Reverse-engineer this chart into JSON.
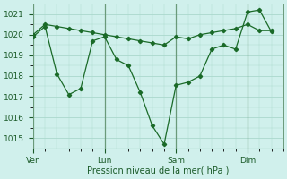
{
  "background_color": "#d0f0ec",
  "grid_color": "#aad8cc",
  "line_color": "#1a6a28",
  "marker_color": "#1a6a28",
  "xlabel": "Pression niveau de la mer( hPa )",
  "ylim": [
    1014.5,
    1021.5
  ],
  "yticks": [
    1015,
    1016,
    1017,
    1018,
    1019,
    1020,
    1021
  ],
  "xtick_labels": [
    "Ven",
    "Lun",
    "Sam",
    "Dim"
  ],
  "xtick_positions": [
    0,
    3,
    6,
    9
  ],
  "vline_positions": [
    0,
    3,
    6,
    9
  ],
  "series1_x": [
    0,
    0.5,
    1.0,
    1.5,
    2.0,
    2.5,
    3.0,
    3.5,
    4.0,
    4.5,
    5.0,
    5.5,
    6.0,
    6.5,
    7.0,
    7.5,
    8.0,
    8.5,
    9.0,
    9.5,
    10.0
  ],
  "series1_y": [
    1020.0,
    1020.5,
    1020.4,
    1020.3,
    1020.2,
    1020.1,
    1020.0,
    1019.9,
    1019.8,
    1019.7,
    1019.6,
    1019.5,
    1019.9,
    1019.8,
    1020.0,
    1020.1,
    1020.2,
    1020.3,
    1020.5,
    1020.2,
    1020.2
  ],
  "series2_x": [
    0,
    0.5,
    1.0,
    1.5,
    2.0,
    2.5,
    3.0,
    3.5,
    4.0,
    4.5,
    5.0,
    5.5,
    6.0,
    6.5,
    7.0,
    7.5,
    8.0,
    8.5,
    9.0,
    9.5,
    10.0
  ],
  "series2_y": [
    1019.9,
    1020.4,
    1018.1,
    1017.1,
    1017.4,
    1019.7,
    1019.9,
    1018.8,
    1018.5,
    1017.2,
    1015.6,
    1014.7,
    1017.55,
    1017.7,
    1018.0,
    1019.3,
    1019.5,
    1019.3,
    1021.1,
    1021.2,
    1020.15
  ],
  "xlim": [
    0,
    10.5
  ]
}
